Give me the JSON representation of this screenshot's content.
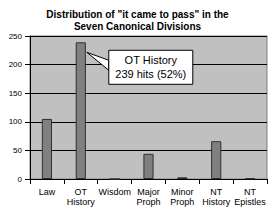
{
  "chart_data": {
    "type": "bar",
    "title": "Distribution of \"it came to pass\" in the\nSeven Canonical Divisions",
    "categories": [
      "Law",
      "OT History",
      "Wisdom",
      "Major Proph",
      "Minor Proph",
      "NT History",
      "NT Epistles"
    ],
    "values": [
      105,
      239,
      0,
      44,
      3,
      66,
      1
    ],
    "color": "#808080",
    "ylim": [
      0,
      250
    ],
    "yticks": [
      0,
      50,
      100,
      150,
      200,
      250
    ],
    "grid": true,
    "annotations": [
      "OT History",
      "239 hits (52%)"
    ]
  }
}
